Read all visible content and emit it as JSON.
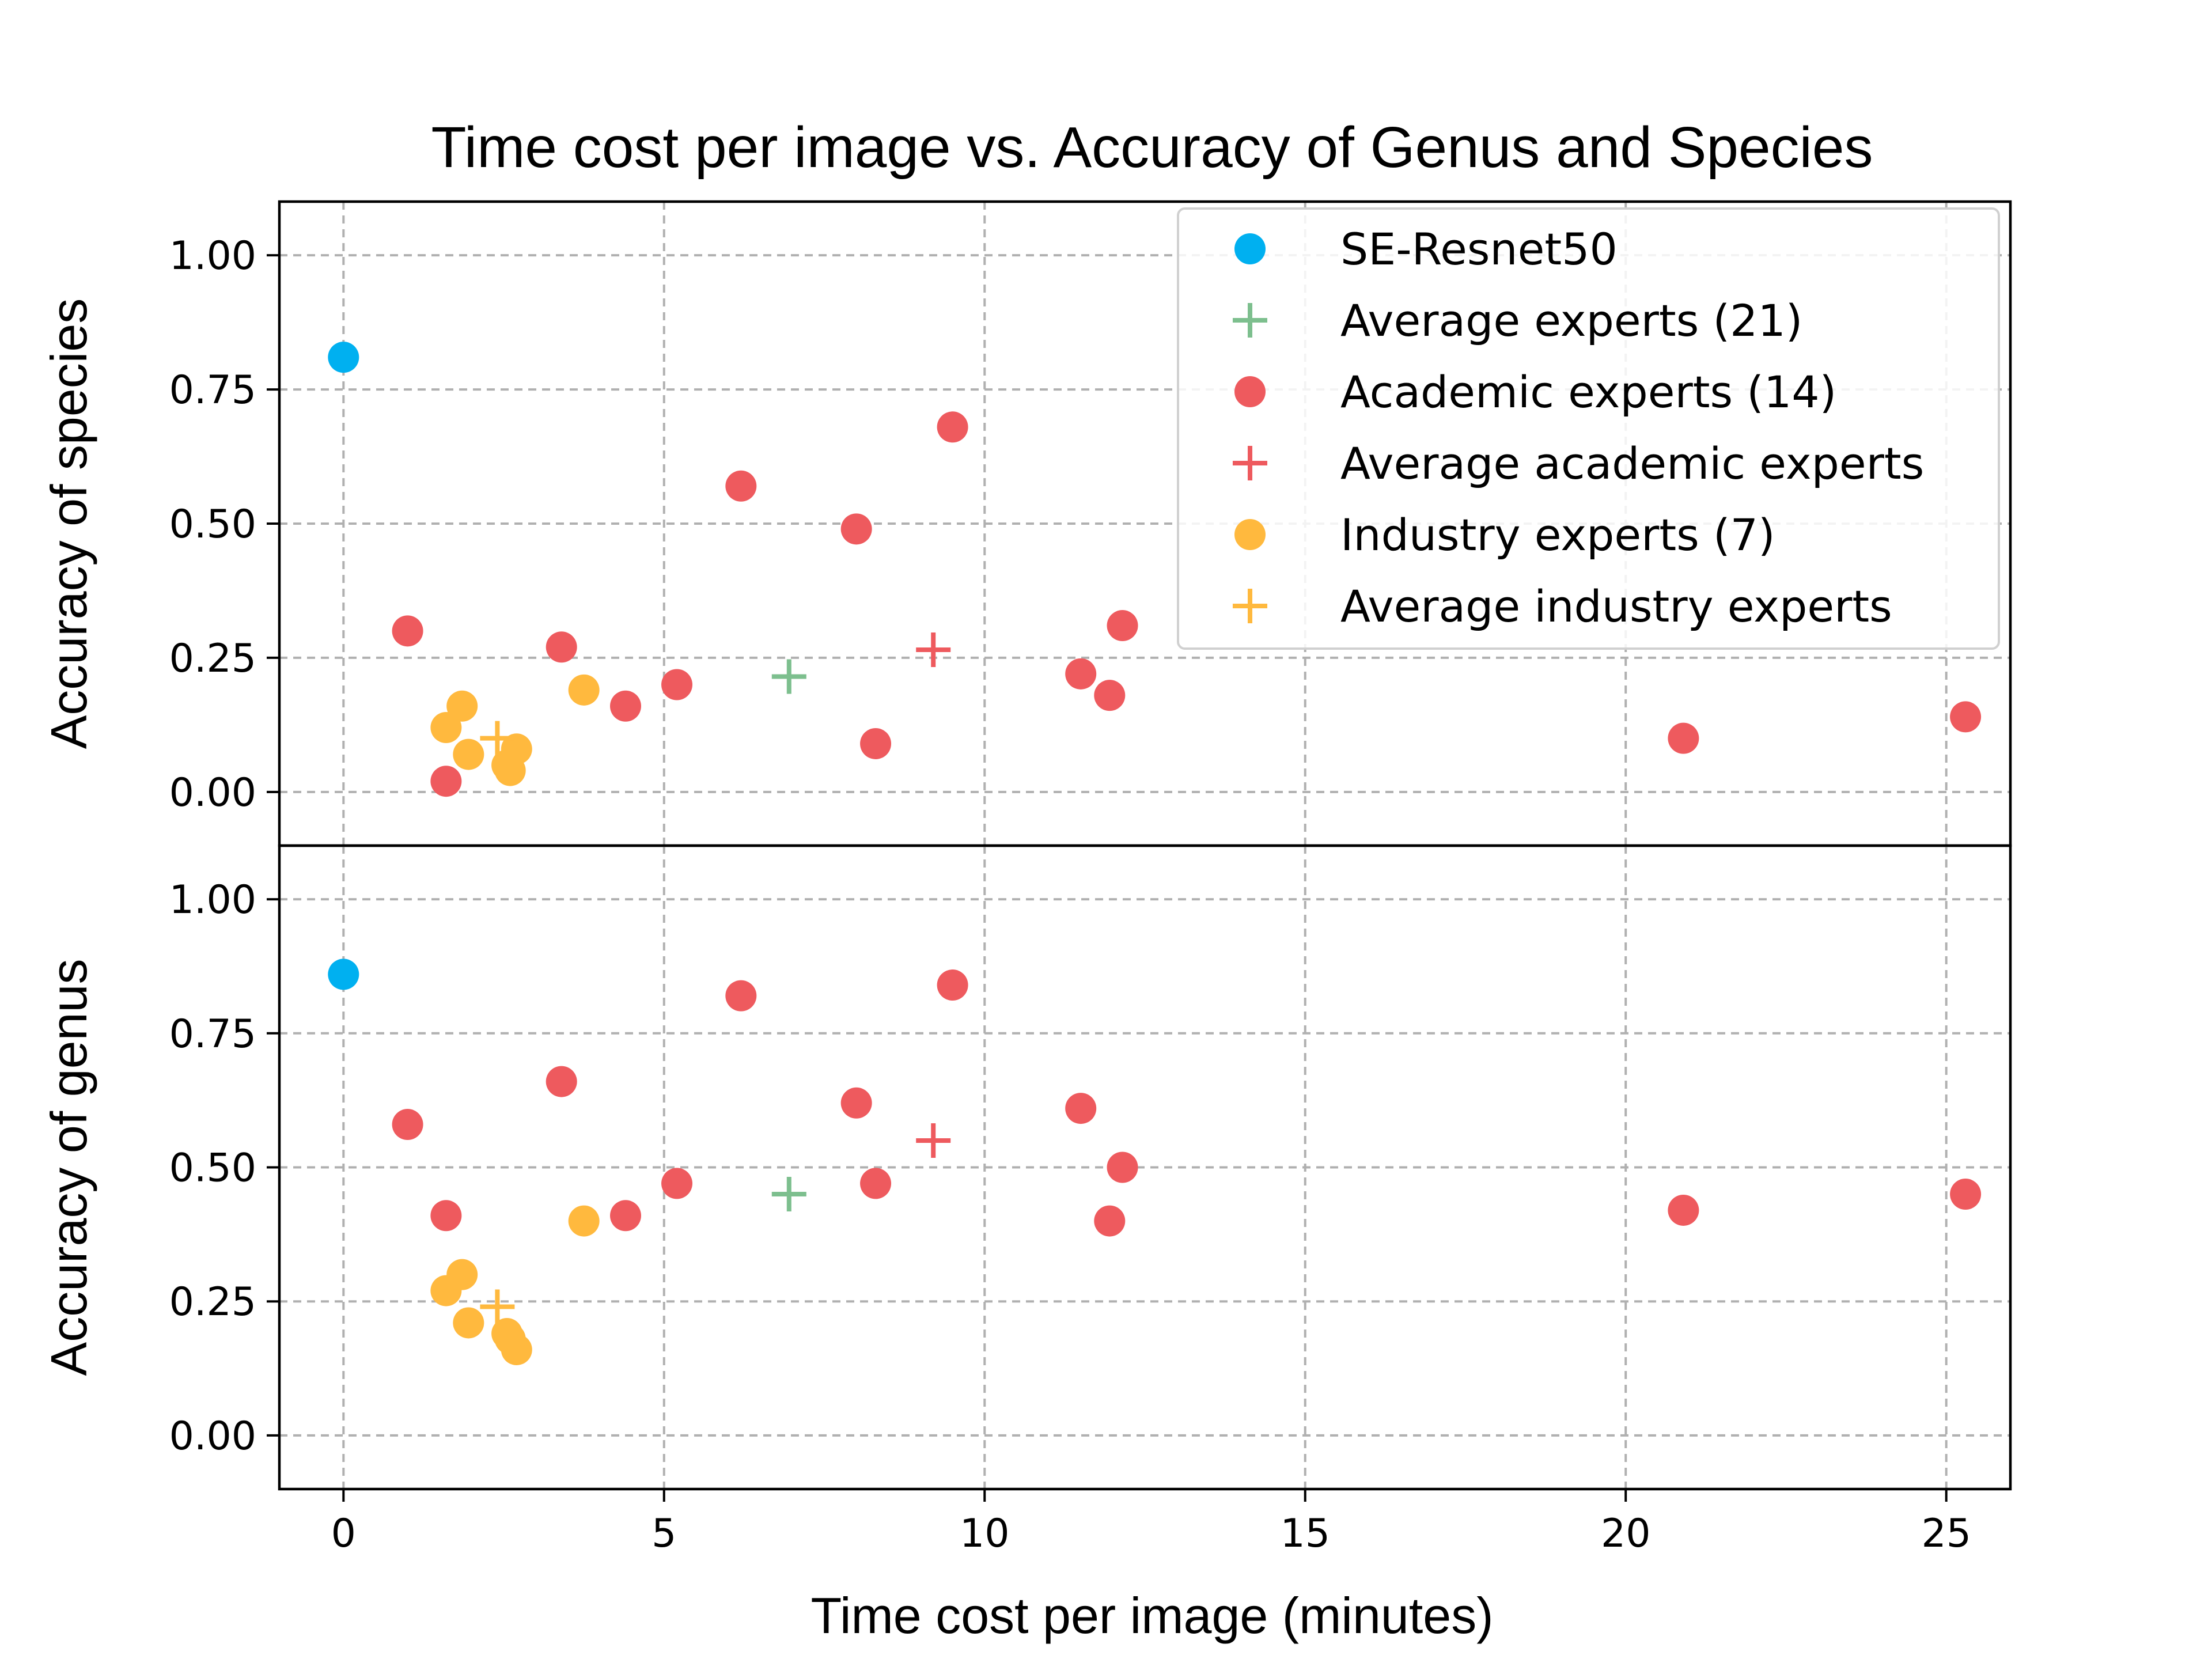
{
  "chart_data": {
    "type": "scatter",
    "title": "Time cost per image vs. Accuracy of Genus and Species",
    "xlabel": "Time cost per image (minutes)",
    "xlim": [
      -1,
      26
    ],
    "x_ticks": [
      0,
      5,
      10,
      15,
      20,
      25
    ],
    "x_tick_labels": [
      "0",
      "5",
      "10",
      "15",
      "20",
      "25"
    ],
    "grid": true,
    "legend": {
      "placement": "top-right, upper panel"
    },
    "series_styles": [
      {
        "name": "SE-Resnet50",
        "marker": "circle",
        "color": "#00B0F0"
      },
      {
        "name": "Average experts (21)",
        "marker": "plus",
        "color": "#7DBF8E"
      },
      {
        "name": "Academic experts (14)",
        "marker": "circle",
        "color": "#EE5A5E"
      },
      {
        "name": "Average academic experts",
        "marker": "plus",
        "color": "#EE5A5E"
      },
      {
        "name": "Industry experts (7)",
        "marker": "circle",
        "color": "#FFB93E"
      },
      {
        "name": "Average industry experts",
        "marker": "plus",
        "color": "#FFB93E"
      }
    ],
    "panels": [
      {
        "ylabel": "Accuracy of species",
        "ylim": [
          -0.1,
          1.1
        ],
        "y_ticks": [
          0,
          0.25,
          0.5,
          0.75,
          1.0
        ],
        "y_tick_labels": [
          "0.00",
          "0.25",
          "0.50",
          "0.75",
          "1.00"
        ],
        "series": [
          {
            "name": "SE-Resnet50",
            "points": [
              [
                0,
                0.81
              ]
            ]
          },
          {
            "name": "Average experts (21)",
            "points": [
              [
                6.95,
                0.215
              ]
            ]
          },
          {
            "name": "Academic experts (14)",
            "points": [
              [
                1.0,
                0.3
              ],
              [
                1.6,
                0.02
              ],
              [
                3.4,
                0.27
              ],
              [
                4.4,
                0.16
              ],
              [
                5.2,
                0.2
              ],
              [
                6.2,
                0.57
              ],
              [
                8.0,
                0.49
              ],
              [
                8.3,
                0.09
              ],
              [
                9.5,
                0.68
              ],
              [
                11.5,
                0.22
              ],
              [
                11.95,
                0.18
              ],
              [
                12.15,
                0.31
              ],
              [
                20.9,
                0.1
              ],
              [
                25.3,
                0.14
              ]
            ]
          },
          {
            "name": "Average academic experts",
            "points": [
              [
                9.2,
                0.265
              ]
            ]
          },
          {
            "name": "Industry experts (7)",
            "points": [
              [
                1.6,
                0.12
              ],
              [
                1.85,
                0.16
              ],
              [
                1.95,
                0.07
              ],
              [
                2.55,
                0.05
              ],
              [
                2.6,
                0.04
              ],
              [
                2.7,
                0.08
              ],
              [
                3.75,
                0.19
              ]
            ]
          },
          {
            "name": "Average industry experts",
            "points": [
              [
                2.4,
                0.1
              ]
            ]
          }
        ]
      },
      {
        "ylabel": "Accuracy of genus",
        "ylim": [
          -0.1,
          1.1
        ],
        "y_ticks": [
          0,
          0.25,
          0.5,
          0.75,
          1.0
        ],
        "y_tick_labels": [
          "0.00",
          "0.25",
          "0.50",
          "0.75",
          "1.00"
        ],
        "series": [
          {
            "name": "SE-Resnet50",
            "points": [
              [
                0,
                0.86
              ]
            ]
          },
          {
            "name": "Average experts (21)",
            "points": [
              [
                6.95,
                0.45
              ]
            ]
          },
          {
            "name": "Academic experts (14)",
            "points": [
              [
                1.0,
                0.58
              ],
              [
                1.6,
                0.41
              ],
              [
                3.4,
                0.66
              ],
              [
                4.4,
                0.41
              ],
              [
                5.2,
                0.47
              ],
              [
                6.2,
                0.82
              ],
              [
                8.0,
                0.62
              ],
              [
                8.3,
                0.47
              ],
              [
                9.5,
                0.84
              ],
              [
                11.5,
                0.61
              ],
              [
                11.95,
                0.4
              ],
              [
                12.15,
                0.5
              ],
              [
                20.9,
                0.42
              ],
              [
                25.3,
                0.45
              ]
            ]
          },
          {
            "name": "Average academic experts",
            "points": [
              [
                9.2,
                0.55
              ]
            ]
          },
          {
            "name": "Industry experts (7)",
            "points": [
              [
                1.6,
                0.27
              ],
              [
                1.85,
                0.3
              ],
              [
                1.95,
                0.21
              ],
              [
                2.55,
                0.19
              ],
              [
                2.6,
                0.18
              ],
              [
                2.7,
                0.16
              ],
              [
                3.75,
                0.4
              ]
            ]
          },
          {
            "name": "Average industry experts",
            "points": [
              [
                2.4,
                0.24
              ]
            ]
          }
        ]
      }
    ]
  }
}
